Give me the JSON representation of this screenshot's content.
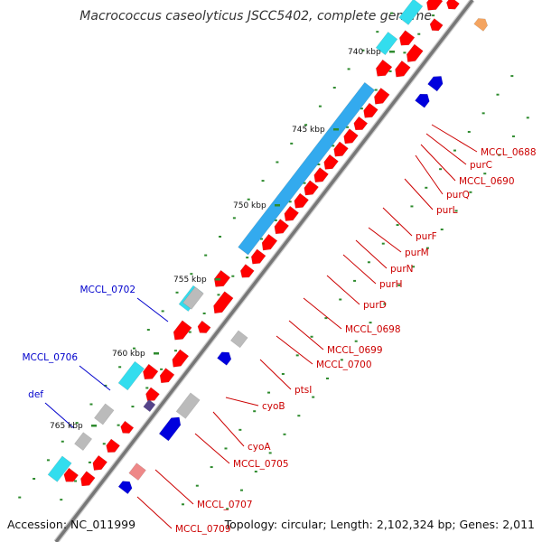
{
  "title": "Macrococcus caseolyticus JSCC5402, complete genome",
  "ticks": [
    {
      "label": "740 kbp"
    },
    {
      "label": "745 kbp"
    },
    {
      "label": "750 kbp"
    },
    {
      "label": "755 kbp"
    },
    {
      "label": "760 kbp"
    },
    {
      "label": "765 kbp"
    }
  ],
  "gene_labels": [
    {
      "text": "MCCL_0688",
      "color": "#cc0000"
    },
    {
      "text": "purC",
      "color": "#cc0000"
    },
    {
      "text": "MCCL_0690",
      "color": "#cc0000"
    },
    {
      "text": "purQ",
      "color": "#cc0000"
    },
    {
      "text": "purL",
      "color": "#cc0000"
    },
    {
      "text": "purF",
      "color": "#cc0000"
    },
    {
      "text": "purM",
      "color": "#cc0000"
    },
    {
      "text": "purN",
      "color": "#cc0000"
    },
    {
      "text": "purH",
      "color": "#cc0000"
    },
    {
      "text": "purD",
      "color": "#cc0000"
    },
    {
      "text": "MCCL_0698",
      "color": "#cc0000"
    },
    {
      "text": "MCCL_0699",
      "color": "#cc0000"
    },
    {
      "text": "MCCL_0700",
      "color": "#cc0000"
    },
    {
      "text": "ptsI",
      "color": "#cc0000"
    },
    {
      "text": "cyoB",
      "color": "#cc0000"
    },
    {
      "text": "cyoA",
      "color": "#cc0000"
    },
    {
      "text": "MCCL_0705",
      "color": "#cc0000"
    },
    {
      "text": "MCCL_0707",
      "color": "#cc0000"
    },
    {
      "text": "MCCL_0709",
      "color": "#cc0000"
    },
    {
      "text": "MCCL_0702",
      "color": "#0000cc"
    },
    {
      "text": "MCCL_0706",
      "color": "#0000cc"
    },
    {
      "text": "def",
      "color": "#0000cc"
    }
  ],
  "colors": {
    "cds_forward": "#ff0000",
    "cds_reverse": "#0000dd",
    "gray_feature": "#bbbbbb",
    "cyan_feature": "#33ddee",
    "blue_feature": "#33aaee",
    "backbone": "#777777"
  },
  "footer": {
    "accession": "Accession: NC_011999",
    "stats": "Topology: circular; Length: 2,102,324 bp; Genes: 2,011"
  }
}
